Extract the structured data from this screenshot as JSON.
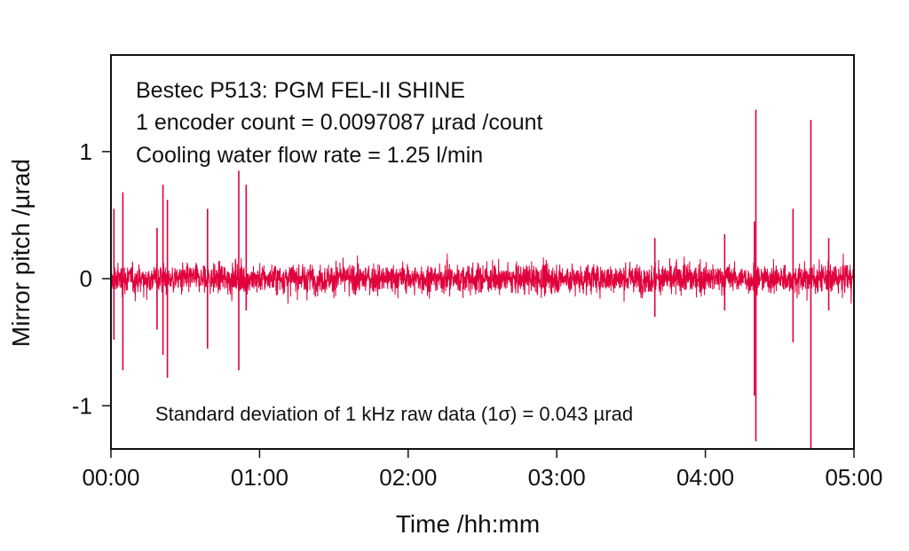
{
  "chart_data": {
    "type": "line",
    "title": "",
    "xlabel": "Time /hh:mm",
    "ylabel": "Mirror pitch /µrad",
    "xlim_hours": [
      0,
      5
    ],
    "ylim": [
      -1.34,
      1.76
    ],
    "x_ticks": [
      {
        "value": 0,
        "label": "00:00"
      },
      {
        "value": 1,
        "label": "01:00"
      },
      {
        "value": 2,
        "label": "02:00"
      },
      {
        "value": 3,
        "label": "03:00"
      },
      {
        "value": 4,
        "label": "04:00"
      },
      {
        "value": 5,
        "label": "05:00"
      }
    ],
    "y_ticks": [
      {
        "value": 1,
        "label": "1"
      },
      {
        "value": 0,
        "label": "0"
      },
      {
        "value": -1,
        "label": "-1"
      }
    ],
    "grid": false,
    "series": [
      {
        "name": "Mirror pitch (1 kHz raw data)",
        "color": "#e0003c",
        "noise_sigma": 0.043,
        "spikes": [
          {
            "t": 0.02,
            "max": 0.55,
            "min": -0.48
          },
          {
            "t": 0.08,
            "max": 0.68,
            "min": -0.72
          },
          {
            "t": 0.31,
            "max": 0.4,
            "min": -0.4
          },
          {
            "t": 0.35,
            "max": 0.74,
            "min": -0.6
          },
          {
            "t": 0.38,
            "max": 0.62,
            "min": -0.78
          },
          {
            "t": 0.65,
            "max": 0.55,
            "min": -0.55
          },
          {
            "t": 0.86,
            "max": 0.85,
            "min": -0.72
          },
          {
            "t": 0.91,
            "max": 0.74,
            "min": -0.25
          },
          {
            "t": 3.66,
            "max": 0.32,
            "min": -0.3
          },
          {
            "t": 4.13,
            "max": 0.35,
            "min": -0.25
          },
          {
            "t": 4.33,
            "max": 0.45,
            "min": -0.92
          },
          {
            "t": 4.34,
            "max": 1.33,
            "min": -1.28
          },
          {
            "t": 4.59,
            "max": 0.55,
            "min": -0.5
          },
          {
            "t": 4.71,
            "max": 1.25,
            "min": -1.34
          },
          {
            "t": 4.83,
            "max": 0.32,
            "min": -0.25
          }
        ]
      }
    ],
    "annotations": [
      "Bestec P513: PGM FEL-II SHINE",
      "1 encoder count = 0.0097087 µrad /count",
      "Cooling water flow rate = 1.25 l/min",
      "Standard deviation of 1 kHz raw data (1σ) = 0.043 µrad"
    ]
  }
}
